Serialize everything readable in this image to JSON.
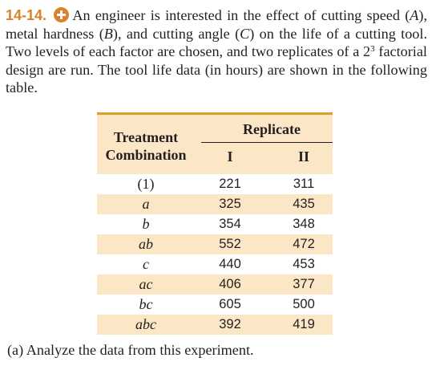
{
  "problem": {
    "number": "14-14.",
    "icon": "plus-circle-icon",
    "text_a": "An engineer is interested in the effect of cutting speed (",
    "var_A": "A",
    "text_b": "), metal hardness (",
    "var_B": "B",
    "text_c": "), and cutting angle (",
    "var_C": "C",
    "text_d": ") on the life of a cutting tool. Two levels of each factor are chosen, and two replicates of a 2",
    "exponent": "3",
    "text_e": " factorial design are run. The tool life data (in hours) are shown in the following table."
  },
  "table": {
    "header_treatment_1": "Treatment",
    "header_treatment_2": "Combination",
    "header_replicate": "Replicate",
    "header_rep1": "I",
    "header_rep2": "II",
    "rows": [
      {
        "combo": "(1)",
        "r1": "221",
        "r2": "311"
      },
      {
        "combo": "a",
        "r1": "325",
        "r2": "435"
      },
      {
        "combo": "b",
        "r1": "354",
        "r2": "348"
      },
      {
        "combo": "ab",
        "r1": "552",
        "r2": "472"
      },
      {
        "combo": "c",
        "r1": "440",
        "r2": "453"
      },
      {
        "combo": "ac",
        "r1": "406",
        "r2": "377"
      },
      {
        "combo": "bc",
        "r1": "605",
        "r2": "500"
      },
      {
        "combo": "abc",
        "r1": "392",
        "r2": "419"
      }
    ]
  },
  "question": "(a) Analyze the data from this experiment.",
  "colors": {
    "accent": "#d9822b",
    "shade": "#fbe6c6",
    "rule": "#d9a12b"
  }
}
